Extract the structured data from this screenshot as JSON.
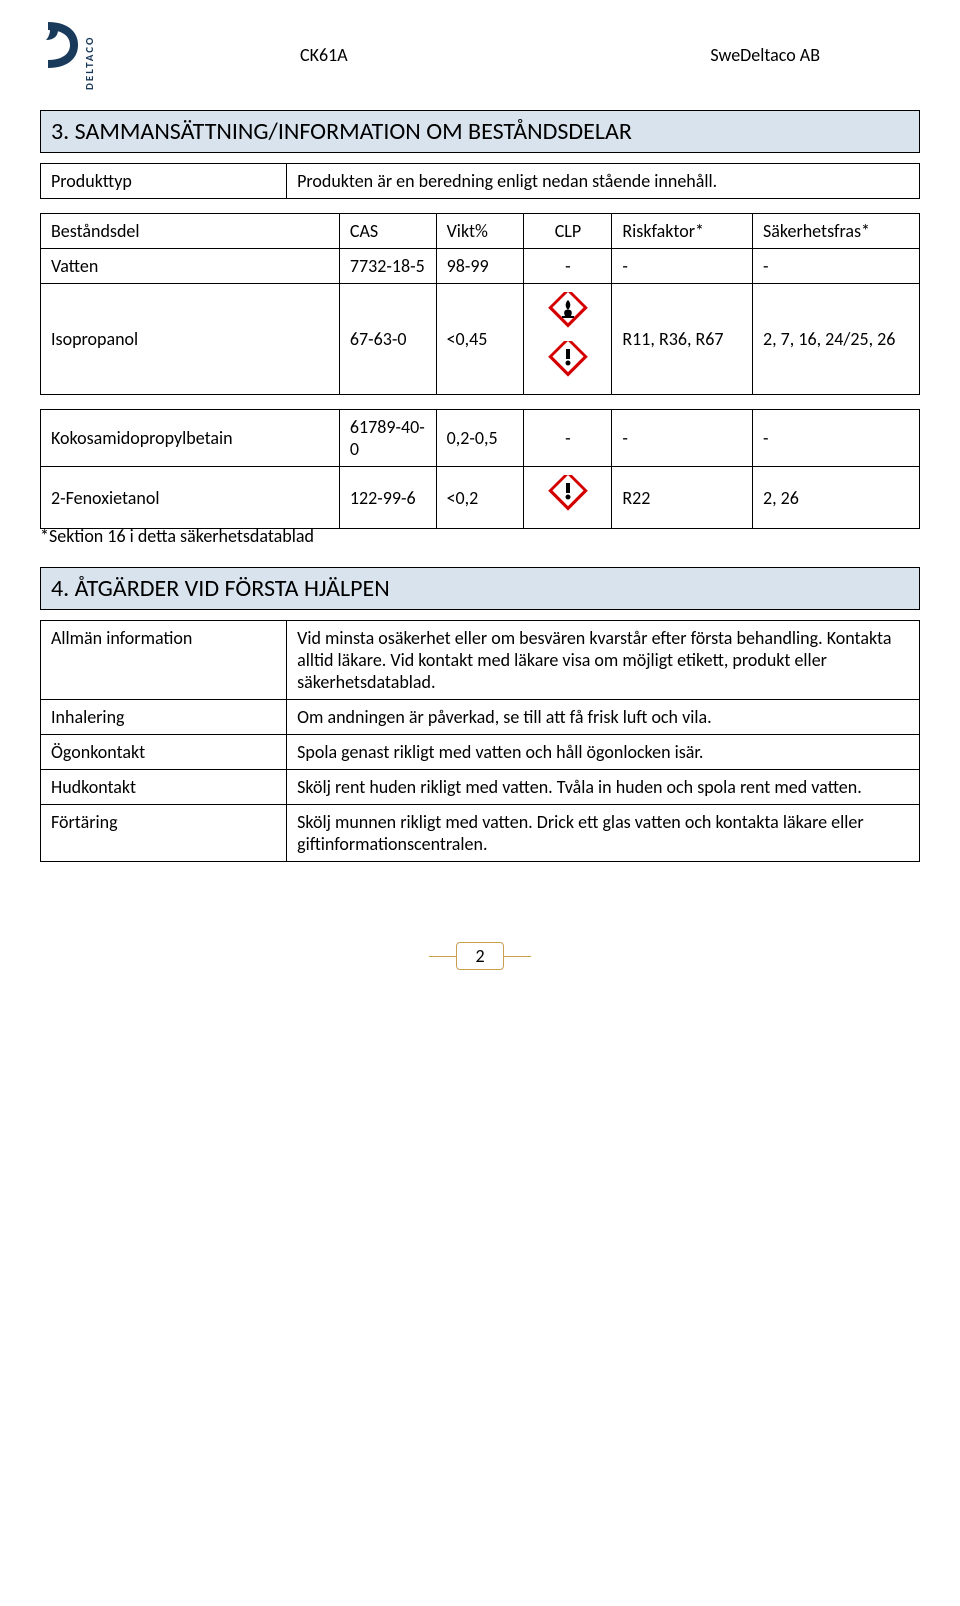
{
  "header": {
    "logo_label": "DELTACO",
    "doc_code": "CK61A",
    "company": "SweDeltaco AB",
    "logo_color": "#1a3a5c"
  },
  "section3": {
    "title": "3. SAMMANSÄTTNING/INFORMATION OM BESTÅNDSDELAR",
    "producttype_label": "Produkttyp",
    "producttype_value": "Produkten är en beredning enligt nedan stående innehåll.",
    "columns": {
      "name": "Beståndsdel",
      "cas": "CAS",
      "vikt": "Vikt%",
      "clp": "CLP",
      "risk": "Riskfaktor*",
      "safe": "Säkerhetsfras*"
    },
    "rows_top": [
      {
        "name": "Vatten",
        "cas": "7732-18-5",
        "vikt": "98-99",
        "clp": "-",
        "risk": "-",
        "safe": "-",
        "hazards": []
      },
      {
        "name": "Isopropanol",
        "cas": "67-63-0",
        "vikt": "<0,45",
        "clp": "",
        "risk": "R11, R36, R67",
        "safe": "2, 7, 16, 24/25, 26",
        "hazards": [
          "flame",
          "exclaim"
        ]
      }
    ],
    "rows_bottom": [
      {
        "name": "Kokosamidopropylbetain",
        "cas": "61789-40-0",
        "vikt": "0,2-0,5",
        "clp": "-",
        "risk": "-",
        "safe": "-",
        "hazards": []
      },
      {
        "name": "2-Fenoxietanol",
        "cas": "122-99-6",
        "vikt": "<0,2",
        "clp": "",
        "risk": "R22",
        "safe": "2, 26",
        "hazards": [
          "exclaim"
        ]
      }
    ],
    "footnote": "*Sektion 16 i detta säkerhetsdatablad"
  },
  "section4": {
    "title": "4. ÅTGÄRDER VID FÖRSTA HJÄLPEN",
    "rows": [
      {
        "label": "Allmän information",
        "value": "Vid minsta osäkerhet eller om besvären kvarstår efter första behandling. Kontakta alltid läkare. Vid kontakt med läkare visa om möjligt etikett, produkt eller säkerhetsdatablad."
      },
      {
        "label": "Inhalering",
        "value": "Om andningen är påverkad, se till att få frisk luft och vila."
      },
      {
        "label": "Ögonkontakt",
        "value": "Spola genast rikligt med vatten och håll ögonlocken isär."
      },
      {
        "label": "Hudkontakt",
        "value": "Skölj rent huden rikligt med vatten. Tvåla in huden och spola rent med vatten."
      },
      {
        "label": "Förtäring",
        "value": "Skölj munnen rikligt med vatten. Drick ett glas vatten och kontakta läkare eller giftinformationscentralen."
      }
    ]
  },
  "page_number": "2",
  "colors": {
    "section_bg": "#d8e3ed",
    "hazard_red": "#d40000",
    "hazard_black": "#000000",
    "hazard_white": "#ffffff",
    "pager_border": "#c9a050"
  }
}
